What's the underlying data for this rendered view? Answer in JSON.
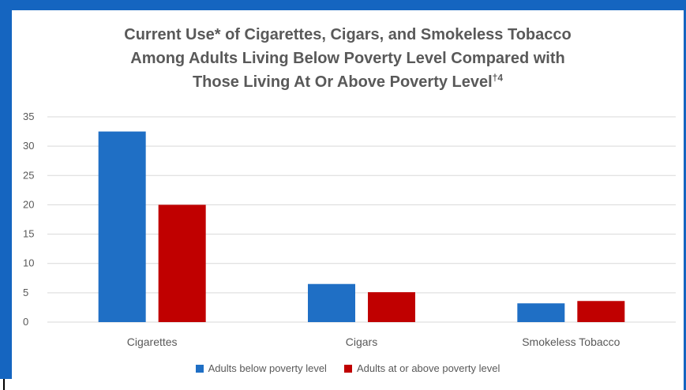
{
  "chart_data": {
    "type": "bar",
    "title_lines": [
      "Current Use* of Cigarettes, Cigars, and Smokeless Tobacco",
      "Among Adults Living Below Poverty Level Compared with",
      "Those Living At Or Above Poverty Level"
    ],
    "title_superscript": "†4",
    "categories": [
      "Cigarettes",
      "Cigars",
      "Smokeless Tobacco"
    ],
    "series": [
      {
        "name": "Adults below poverty level",
        "values": [
          32.5,
          6.5,
          3.2
        ],
        "color": "#1f6fc5"
      },
      {
        "name": "Adults at or above poverty level",
        "values": [
          20.0,
          5.1,
          3.6
        ],
        "color": "#c00000"
      }
    ],
    "ylim": [
      0,
      35
    ],
    "yticks": [
      "0",
      "5",
      "10",
      "15",
      "20",
      "25",
      "30",
      "35"
    ],
    "grid": true,
    "legend_position": "bottom"
  },
  "colors": {
    "frame": "#1565c0",
    "grid": "#d9d9d9",
    "text": "#595959"
  }
}
